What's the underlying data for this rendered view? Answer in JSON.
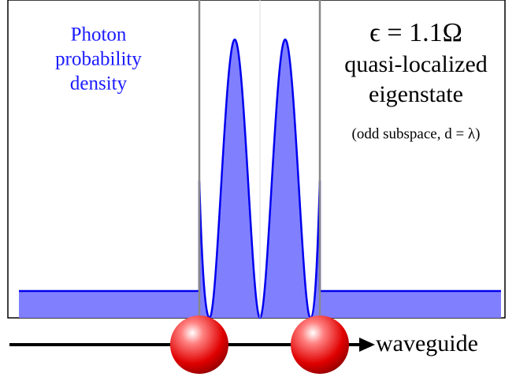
{
  "label_box": {
    "lines": [
      "Photon",
      "probability",
      "density"
    ]
  },
  "state_box": {
    "energy": "ϵ = 1.1Ω",
    "lines": [
      "quasi-localized",
      "eigenstate"
    ],
    "note": "(odd subspace, d = λ)"
  },
  "axis_label": "waveguide"
}
